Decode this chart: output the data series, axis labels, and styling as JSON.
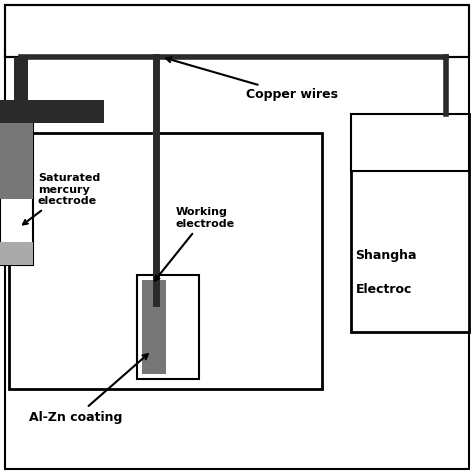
{
  "bg_color": "#ffffff",
  "border_color": "#000000",
  "dark_gray": "#2a2a2a",
  "mid_gray": "#777777",
  "light_gray": "#aaaaaa",
  "wire_color": "#1a1a1a",
  "labels": {
    "copper_wires": "Copper wires",
    "saturated_mercury": "Saturated\nmercury\nelectrode",
    "working_electrode": "Working\nelectrode",
    "al_zn_coating": "Al-Zn coating",
    "shanghai_line1": "Shangha",
    "shanghai_line2": "Electroc"
  },
  "font_size_large": 9,
  "font_size_small": 8
}
